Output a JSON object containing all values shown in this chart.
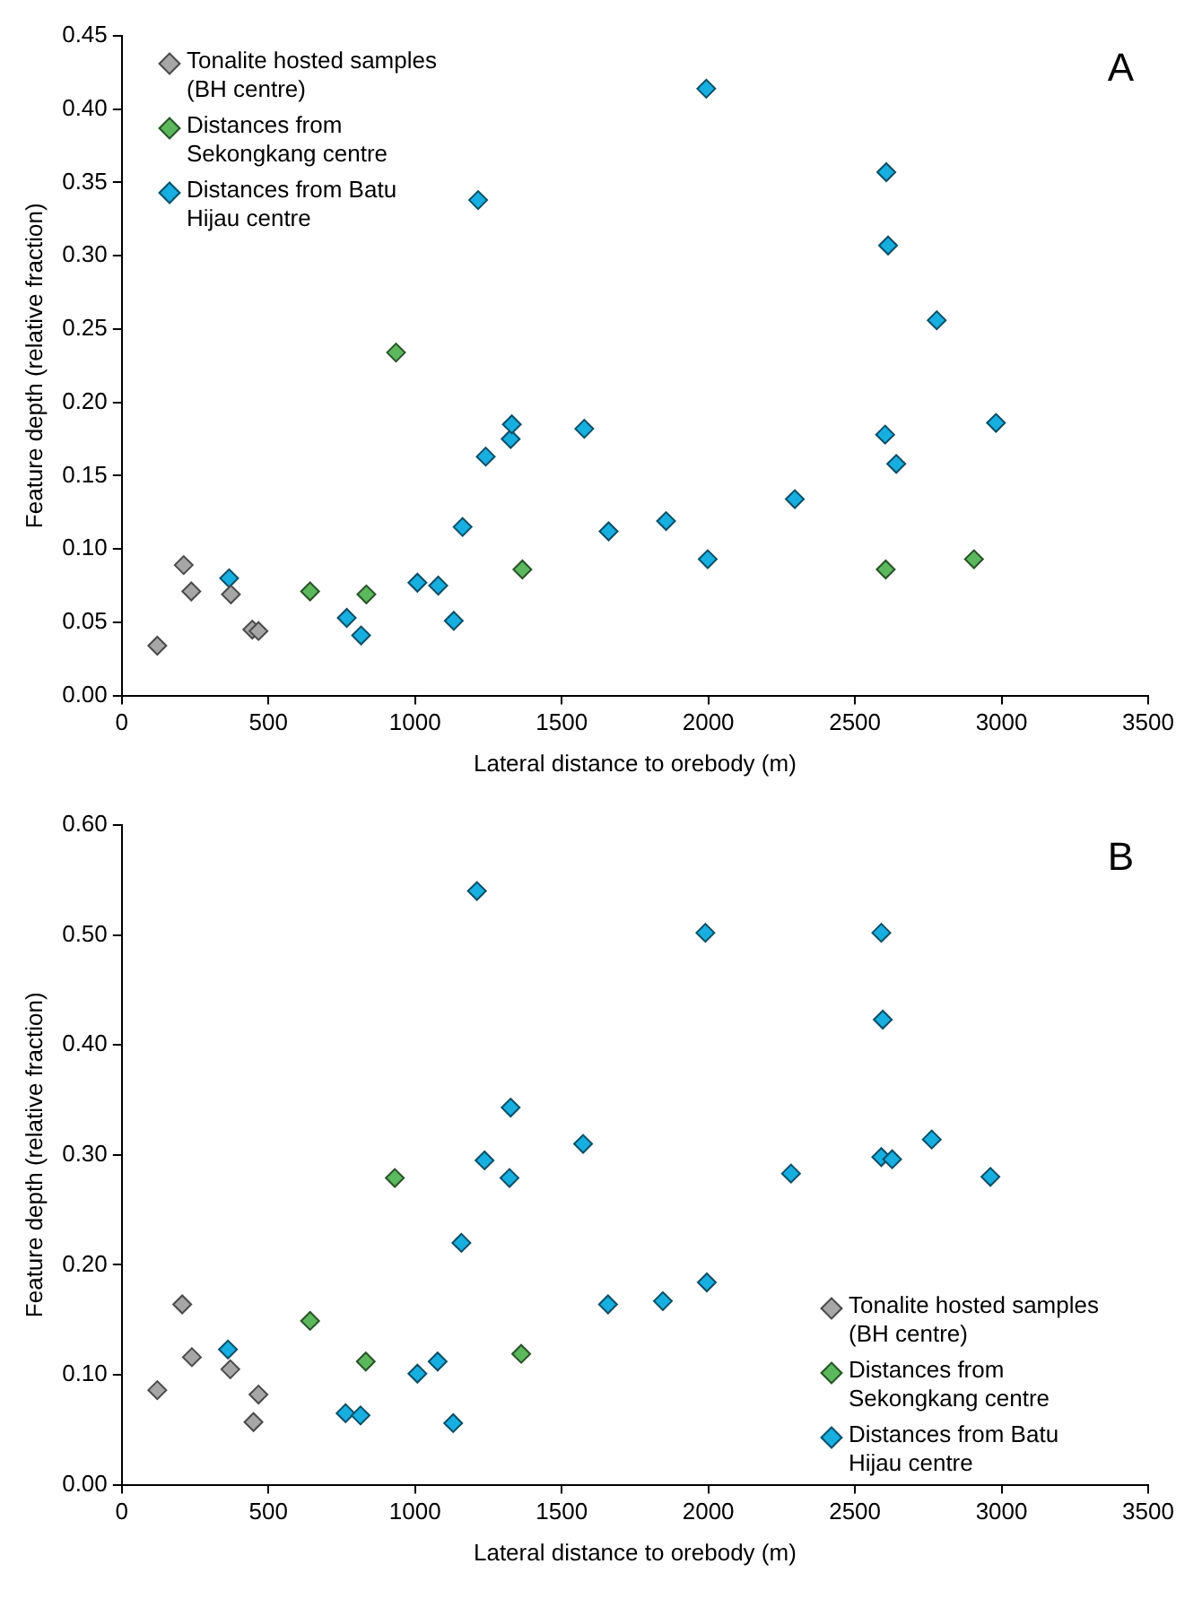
{
  "chart_data": [
    {
      "type": "scatter",
      "annotations": [
        "A"
      ],
      "xlabel": "Lateral distance to orebody (m)",
      "ylabel": "Feature depth (relative fraction)",
      "xlim": [
        0,
        3500
      ],
      "xticks": [
        0,
        500,
        1000,
        1500,
        2000,
        2500,
        3000,
        3500
      ],
      "ylim": [
        0,
        0.45
      ],
      "yticks": [
        {
          "value": 0,
          "label": "0.00"
        },
        {
          "value": 0.05,
          "label": "0.05"
        },
        {
          "value": 0.1,
          "label": "0.10"
        },
        {
          "value": 0.15,
          "label": "0.15"
        },
        {
          "value": 0.2,
          "label": "0.20"
        },
        {
          "value": 0.25,
          "label": "0.25"
        },
        {
          "value": 0.3,
          "label": "0.30"
        },
        {
          "value": 0.35,
          "label": "0.35"
        },
        {
          "value": 0.4,
          "label": "0.40"
        },
        {
          "value": 0.45,
          "label": "0.45"
        }
      ],
      "grid": false,
      "legend": "top left",
      "marker": "diamond",
      "series": [
        {
          "name": "Tonalite hosted samples (BH centre)",
          "color": "#a6a6a6",
          "x": [
            121,
            211,
            237,
            372,
            445,
            466
          ],
          "values": [
            0.034,
            0.089,
            0.071,
            0.069,
            0.045,
            0.044
          ]
        },
        {
          "name": "Distances from Sekongkang centre",
          "color": "#5cb85c",
          "x": [
            642,
            834,
            935,
            1366,
            2605,
            2906
          ],
          "values": [
            0.071,
            0.069,
            0.234,
            0.086,
            0.086,
            0.093
          ]
        },
        {
          "name": "Distances from Batu Hijau centre",
          "color": "#17aee0",
          "x": [
            366,
            767,
            816,
            1008,
            1079,
            1132,
            1162,
            1215,
            1241,
            1326,
            1330,
            1577,
            1660,
            1856,
            1993,
            1998,
            2295,
            2607,
            2613,
            2603,
            2641,
            2779,
            2981
          ],
          "values": [
            0.08,
            0.053,
            0.041,
            0.077,
            0.075,
            0.051,
            0.115,
            0.338,
            0.163,
            0.175,
            0.185,
            0.182,
            0.112,
            0.119,
            0.414,
            0.093,
            0.134,
            0.357,
            0.307,
            0.178,
            0.158,
            0.256,
            0.186
          ]
        }
      ]
    },
    {
      "type": "scatter",
      "annotations": [
        "B"
      ],
      "xlabel": "Lateral distance to orebody (m)",
      "ylabel": "Feature depth (relative fraction)",
      "xlim": [
        0,
        3500
      ],
      "xticks": [
        0,
        500,
        1000,
        1500,
        2000,
        2500,
        3000,
        3500
      ],
      "ylim": [
        0,
        0.6
      ],
      "yticks": [
        {
          "value": 0,
          "label": "0.00"
        },
        {
          "value": 0.1,
          "label": "0.10"
        },
        {
          "value": 0.2,
          "label": "0.20"
        },
        {
          "value": 0.3,
          "label": "0.30"
        },
        {
          "value": 0.4,
          "label": "0.40"
        },
        {
          "value": 0.5,
          "label": "0.50"
        },
        {
          "value": 0.6,
          "label": "0.60"
        }
      ],
      "grid": false,
      "legend": "bottom right",
      "marker": "diamond",
      "series": [
        {
          "name": "Tonalite hosted samples (BH centre)",
          "color": "#a6a6a6",
          "x": [
            121,
            206,
            239,
            370,
            449,
            466
          ],
          "values": [
            0.086,
            0.164,
            0.116,
            0.105,
            0.057,
            0.082
          ]
        },
        {
          "name": "Distances from Sekongkang centre",
          "color": "#5cb85c",
          "x": [
            642,
            832,
            931,
            1362
          ],
          "values": [
            0.149,
            0.112,
            0.279,
            0.119
          ]
        },
        {
          "name": "Distances from Batu Hijau centre",
          "color": "#17aee0",
          "x": [
            362,
            763,
            814,
            1008,
            1077,
            1130,
            1158,
            1211,
            1237,
            1322,
            1326,
            1573,
            1658,
            1845,
            1990,
            1995,
            2282,
            2590,
            2595,
            2590,
            2627,
            2762,
            2962
          ],
          "values": [
            0.123,
            0.065,
            0.063,
            0.101,
            0.112,
            0.056,
            0.22,
            0.54,
            0.295,
            0.279,
            0.343,
            0.31,
            0.164,
            0.167,
            0.502,
            0.184,
            0.283,
            0.502,
            0.423,
            0.298,
            0.296,
            0.314,
            0.28
          ]
        }
      ]
    }
  ]
}
